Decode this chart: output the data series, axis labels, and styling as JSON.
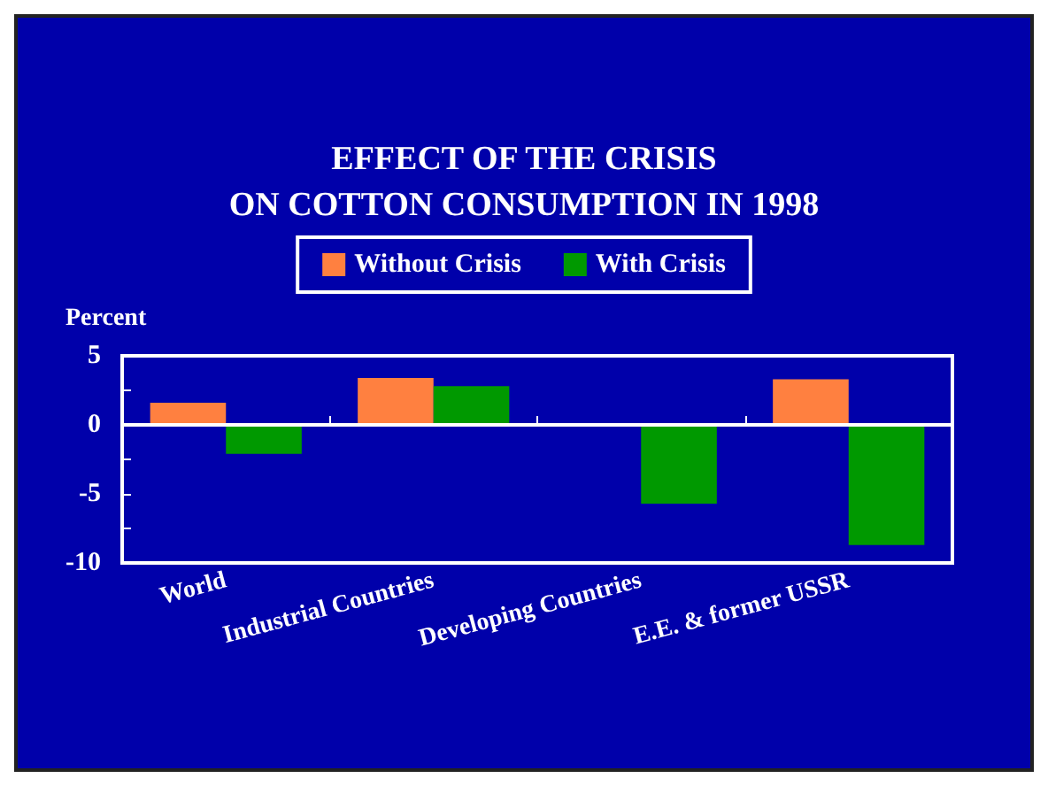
{
  "chart_data": {
    "type": "bar",
    "title": "EFFECT OF THE CRISIS\nON COTTON CONSUMPTION IN 1998",
    "ylabel": "Percent",
    "categories": [
      "World",
      "Industrial Countries",
      "Developing Countries",
      "E.E. & former USSR"
    ],
    "series": [
      {
        "name": "Without Crisis",
        "color": "#ff8040",
        "values": [
          1.6,
          3.4,
          0,
          3.3
        ]
      },
      {
        "name": "With Crisis",
        "color": "#009900",
        "values": [
          -2.1,
          2.8,
          -5.7,
          -8.7
        ]
      }
    ],
    "ylim": [
      -10,
      5
    ],
    "yticks": [
      -10,
      {
        "value": -7.5,
        "label": null
      },
      -5,
      {
        "value": -2.5,
        "label": null
      },
      0,
      {
        "value": 2.5,
        "label": null
      },
      5
    ],
    "ref_lines": [
      {
        "axis": "y",
        "value": 0,
        "color": "#ffffff"
      }
    ],
    "legend": "top"
  }
}
